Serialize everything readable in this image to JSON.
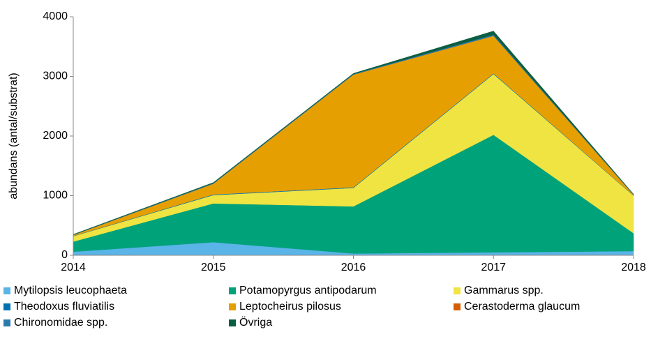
{
  "chart_data": {
    "type": "stacked_area",
    "y_label": "abundans (antal/substrat)",
    "x": [
      2014,
      2015,
      2016,
      2017,
      2018
    ],
    "xlim": [
      2014,
      2018
    ],
    "xticks": [
      2014,
      2015,
      2016,
      2017,
      2018
    ],
    "ylim": [
      0,
      4000
    ],
    "yticks": [
      0,
      1000,
      2000,
      3000,
      4000
    ],
    "legend": "bottom",
    "series": [
      {
        "name": "Mytilopsis leucophaeta",
        "color": "#5ab4e8",
        "values": [
          60,
          220,
          30,
          50,
          70
        ]
      },
      {
        "name": "Potamopyrgus antipodarum",
        "color": "#00a27a",
        "values": [
          170,
          650,
          790,
          1970,
          300
        ]
      },
      {
        "name": "Gammarus spp.",
        "color": "#f0e442",
        "values": [
          90,
          140,
          310,
          1020,
          630
        ]
      },
      {
        "name": "Theodoxus fluviatilis",
        "color": "#0072b2",
        "values": [
          5,
          10,
          10,
          10,
          5
        ]
      },
      {
        "name": "Leptocheirus pilosus",
        "color": "#e69f00",
        "values": [
          15,
          180,
          1890,
          630,
          10
        ]
      },
      {
        "name": "Cerastoderma glaucum",
        "color": "#d55e00",
        "values": [
          0,
          0,
          0,
          0,
          0
        ]
      },
      {
        "name": "Chironomidae spp.",
        "color": "#2a7ab0",
        "values": [
          5,
          10,
          10,
          20,
          5
        ]
      },
      {
        "name": "Övriga",
        "color": "#0b5e3f",
        "values": [
          5,
          10,
          10,
          60,
          5
        ]
      }
    ]
  }
}
